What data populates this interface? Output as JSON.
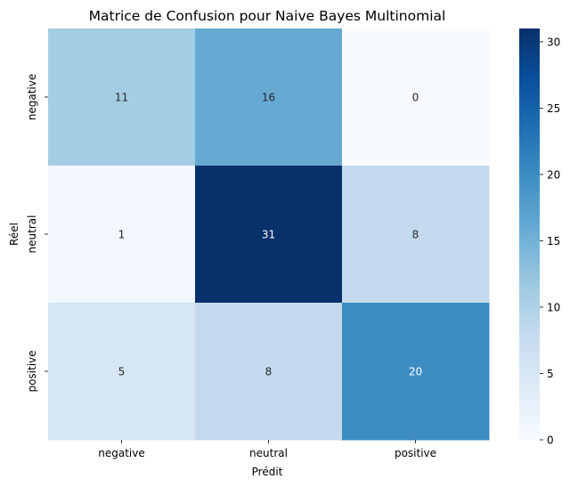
{
  "chart_data": {
    "type": "heatmap",
    "title": "Matrice de Confusion pour Naive Bayes Multinomial",
    "xlabel": "Prédit",
    "ylabel": "Réel",
    "x_categories": [
      "negative",
      "neutral",
      "positive"
    ],
    "y_categories": [
      "negative",
      "neutral",
      "positive"
    ],
    "values": [
      [
        11,
        16,
        0
      ],
      [
        1,
        31,
        8
      ],
      [
        5,
        8,
        20
      ]
    ],
    "colormap": "Blues",
    "colorbar": {
      "range": [
        0,
        31
      ],
      "ticks": [
        "0",
        "5",
        "10",
        "15",
        "20",
        "25",
        "30"
      ]
    },
    "annotations": true,
    "grid": false
  }
}
